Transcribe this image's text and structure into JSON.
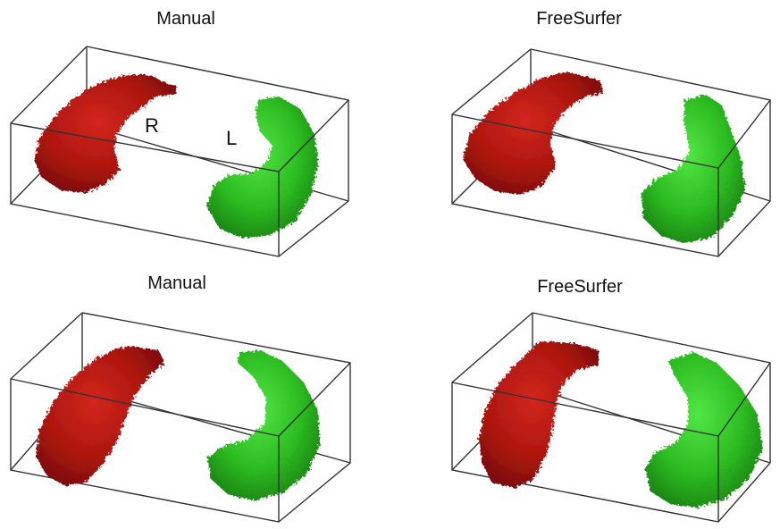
{
  "panels": [
    {
      "title": "Manual",
      "labels": {
        "right": "R",
        "left": "L"
      }
    },
    {
      "title": "FreeSurfer"
    },
    {
      "title": "Manual"
    },
    {
      "title": "FreeSurfer"
    }
  ],
  "colors": {
    "right_structure": "#b01810",
    "left_structure": "#2fbf23",
    "box_edges": "#333333"
  }
}
